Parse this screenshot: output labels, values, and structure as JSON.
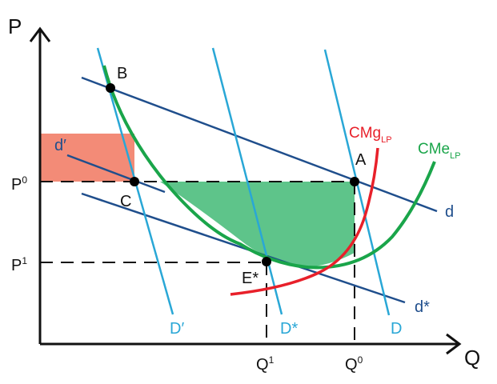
{
  "axes": {
    "y_label": "P",
    "x_label": "Q"
  },
  "ticks": {
    "p0": {
      "base": "P",
      "sup": "0"
    },
    "p1": {
      "base": "P",
      "sup": "1"
    },
    "q1": {
      "base": "Q",
      "sup": "1"
    },
    "q0": {
      "base": "Q",
      "sup": "0"
    }
  },
  "points": {
    "A": "A",
    "B": "B",
    "C": "C",
    "E": "E*"
  },
  "lines": {
    "d": "d",
    "d_prime": "d′",
    "d_star": "d*",
    "D": "D",
    "D_prime": "D′",
    "D_star": "D*"
  },
  "curves": {
    "cmg": {
      "base": "CMg",
      "sub": "LP"
    },
    "cme": {
      "base": "CMe",
      "sub": "LP"
    }
  },
  "colors": {
    "axis": "#111111",
    "dark_blue": "#1f4e8c",
    "light_blue": "#29a7d6",
    "red": "#e8202a",
    "green": "#1aa54a",
    "green_fill": "#5ec48a",
    "salmon_fill": "#f38b77"
  }
}
